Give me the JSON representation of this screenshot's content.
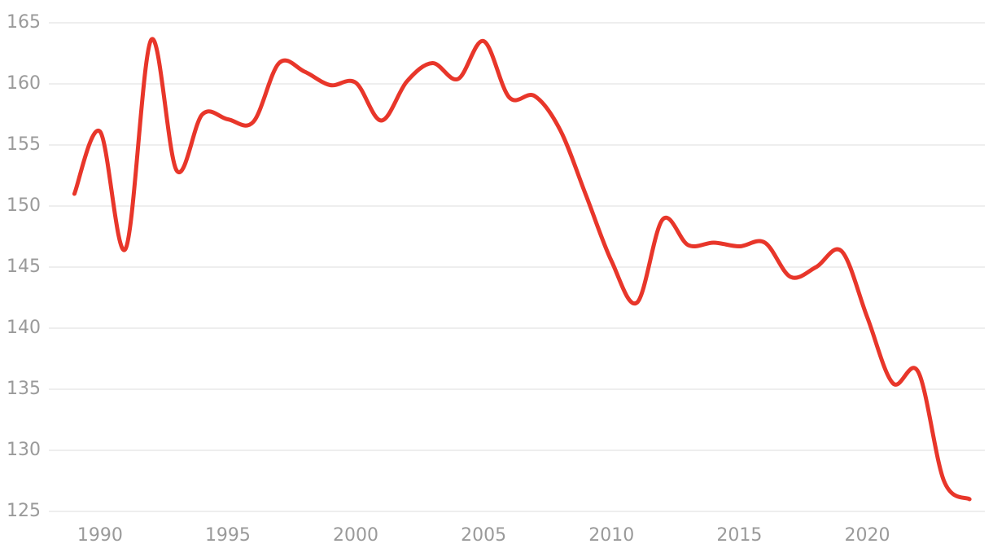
{
  "chart_data": {
    "type": "line",
    "x": [
      1989,
      1990,
      1991,
      1992,
      1993,
      1994,
      1995,
      1996,
      1997,
      1998,
      1999,
      2000,
      2001,
      2002,
      2003,
      2004,
      2005,
      2006,
      2007,
      2008,
      2009,
      2010,
      2011,
      2012,
      2013,
      2014,
      2015,
      2016,
      2017,
      2018,
      2019,
      2020,
      2021,
      2022,
      2023,
      2024
    ],
    "series": [
      {
        "color": "#e8362a",
        "values": [
          151.0,
          156.1,
          146.5,
          163.6,
          152.9,
          157.5,
          157.1,
          156.9,
          161.7,
          161.0,
          159.9,
          160.1,
          157.0,
          160.2,
          161.7,
          160.4,
          163.5,
          158.9,
          159.0,
          156.2,
          150.9,
          145.5,
          142.1,
          148.9,
          146.8,
          147.0,
          146.7,
          147.0,
          144.2,
          145.0,
          146.3,
          140.9,
          135.5,
          136.4,
          127.5,
          126.0
        ]
      }
    ],
    "xlim": [
      1988,
      2024.6
    ],
    "xticks": [
      1990,
      1995,
      2000,
      2005,
      2010,
      2015,
      2020
    ],
    "ylim": [
      125,
      165
    ],
    "yticks": [
      125,
      130,
      135,
      140,
      145,
      150,
      155,
      160,
      165
    ],
    "grid": true
  }
}
